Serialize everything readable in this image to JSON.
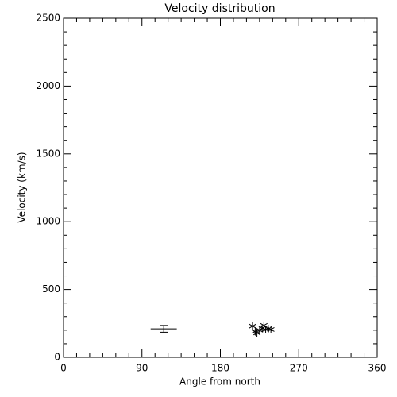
{
  "chart_data": {
    "type": "scatter",
    "title": "Velocity distribution",
    "xlabel": "Angle from north",
    "ylabel": "Velocity (km/s)",
    "marker": "asterisk",
    "color": "#000000",
    "x": [
      217,
      220,
      222,
      225,
      228,
      230,
      232,
      235,
      238
    ],
    "values": [
      230,
      190,
      180,
      200,
      215,
      235,
      205,
      210,
      205
    ],
    "errorbar": {
      "x": 115,
      "y": 210,
      "xerr": 15,
      "yerr": 25
    },
    "xlim": [
      0,
      360
    ],
    "xticks": [
      0,
      90,
      180,
      270,
      360
    ],
    "xminor": 6,
    "ylim": [
      0,
      2500
    ],
    "yticks": [
      0,
      500,
      1000,
      1500,
      2000,
      2500
    ],
    "yminor": 5
  }
}
